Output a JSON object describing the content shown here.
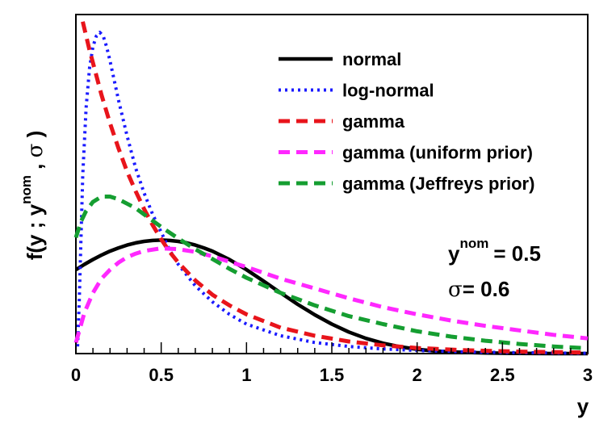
{
  "chart_data": {
    "type": "line",
    "ylabel_parts": {
      "pre": "f(y ; y",
      "sup": "nom",
      "mid": " , ",
      "sigma": "σ",
      "post": " )"
    },
    "xlabel": "y",
    "xlim": [
      0,
      3
    ],
    "ylim": [
      0,
      1.9
    ],
    "x_ticks": [
      "0",
      "0.5",
      "1",
      "1.5",
      "2",
      "2.5",
      "3"
    ],
    "legend_position": "top-right",
    "annotation": {
      "ynom_base": "y",
      "ynom_sup": "nom",
      "ynom_value": "= 0.5",
      "sigma_symbol": "σ",
      "sigma_value": "= 0.6"
    },
    "series": [
      {
        "name": "normal",
        "color": "#000000",
        "style": "solid",
        "x": [
          0.0,
          0.05,
          0.1,
          0.15,
          0.2,
          0.25,
          0.3,
          0.35,
          0.4,
          0.45,
          0.5,
          0.55,
          0.6,
          0.65,
          0.7,
          0.75,
          0.8,
          0.9,
          1.0,
          1.1,
          1.2,
          1.3,
          1.4,
          1.5,
          1.6,
          1.7,
          1.8,
          1.9,
          2.0,
          2.1,
          2.2,
          2.4,
          2.6,
          2.8,
          3.0
        ],
        "y": [
          0.47,
          0.5,
          0.527,
          0.552,
          0.574,
          0.592,
          0.608,
          0.62,
          0.629,
          0.634,
          0.636,
          0.634,
          0.629,
          0.62,
          0.608,
          0.592,
          0.574,
          0.527,
          0.47,
          0.406,
          0.34,
          0.276,
          0.217,
          0.165,
          0.121,
          0.085,
          0.058,
          0.038,
          0.024,
          0.015,
          0.009,
          0.003,
          0.001,
          0.0,
          0.0
        ]
      },
      {
        "name": "log-normal",
        "color": "#1a1aff",
        "style": "dotted",
        "x": [
          0.01,
          0.02,
          0.04,
          0.06,
          0.08,
          0.1,
          0.12,
          0.14,
          0.16,
          0.18,
          0.2,
          0.25,
          0.3,
          0.35,
          0.4,
          0.45,
          0.5,
          0.55,
          0.6,
          0.7,
          0.8,
          0.9,
          1.0,
          1.2,
          1.4,
          1.6,
          1.8,
          2.0,
          2.3,
          2.6,
          3.0
        ],
        "y": [
          0.04,
          0.3,
          1.0,
          1.38,
          1.6,
          1.72,
          1.78,
          1.8,
          1.78,
          1.72,
          1.64,
          1.42,
          1.22,
          1.04,
          0.9,
          0.78,
          0.68,
          0.58,
          0.5,
          0.38,
          0.29,
          0.22,
          0.165,
          0.1,
          0.062,
          0.04,
          0.026,
          0.017,
          0.009,
          0.005,
          0.002
        ]
      },
      {
        "name": "gamma",
        "color": "#e8141b",
        "style": "dashed",
        "x": [
          0.04,
          0.06,
          0.08,
          0.1,
          0.15,
          0.2,
          0.25,
          0.3,
          0.35,
          0.4,
          0.45,
          0.5,
          0.55,
          0.6,
          0.7,
          0.8,
          0.9,
          1.0,
          1.2,
          1.4,
          1.6,
          1.8,
          2.0,
          2.3,
          2.6,
          3.0
        ],
        "y": [
          1.86,
          1.78,
          1.7,
          1.63,
          1.45,
          1.29,
          1.15,
          1.02,
          0.91,
          0.81,
          0.72,
          0.64,
          0.57,
          0.51,
          0.41,
          0.33,
          0.27,
          0.22,
          0.145,
          0.1,
          0.068,
          0.046,
          0.031,
          0.018,
          0.011,
          0.006
        ]
      },
      {
        "name": "gamma (uniform prior)",
        "color": "#ff28ff",
        "style": "dashed",
        "x": [
          0.0,
          0.05,
          0.1,
          0.15,
          0.2,
          0.25,
          0.3,
          0.35,
          0.4,
          0.5,
          0.6,
          0.7,
          0.8,
          0.9,
          1.0,
          1.2,
          1.4,
          1.6,
          1.8,
          2.0,
          2.2,
          2.4,
          2.6,
          2.8,
          3.0
        ],
        "y": [
          0.06,
          0.23,
          0.34,
          0.42,
          0.47,
          0.51,
          0.54,
          0.56,
          0.575,
          0.59,
          0.585,
          0.57,
          0.545,
          0.515,
          0.485,
          0.42,
          0.365,
          0.31,
          0.26,
          0.22,
          0.185,
          0.155,
          0.13,
          0.105,
          0.085
        ]
      },
      {
        "name": "gamma (Jeffreys prior)",
        "color": "#159e31",
        "style": "dashed",
        "x": [
          0.0,
          0.03,
          0.06,
          0.1,
          0.15,
          0.2,
          0.25,
          0.3,
          0.35,
          0.4,
          0.5,
          0.6,
          0.7,
          0.8,
          0.9,
          1.0,
          1.2,
          1.4,
          1.6,
          1.8,
          2.0,
          2.2,
          2.4,
          2.6,
          2.8,
          3.0
        ],
        "y": [
          0.65,
          0.74,
          0.8,
          0.85,
          0.88,
          0.88,
          0.865,
          0.84,
          0.815,
          0.78,
          0.71,
          0.645,
          0.585,
          0.53,
          0.475,
          0.425,
          0.34,
          0.27,
          0.21,
          0.165,
          0.125,
          0.095,
          0.072,
          0.054,
          0.04,
          0.03
        ]
      }
    ]
  }
}
